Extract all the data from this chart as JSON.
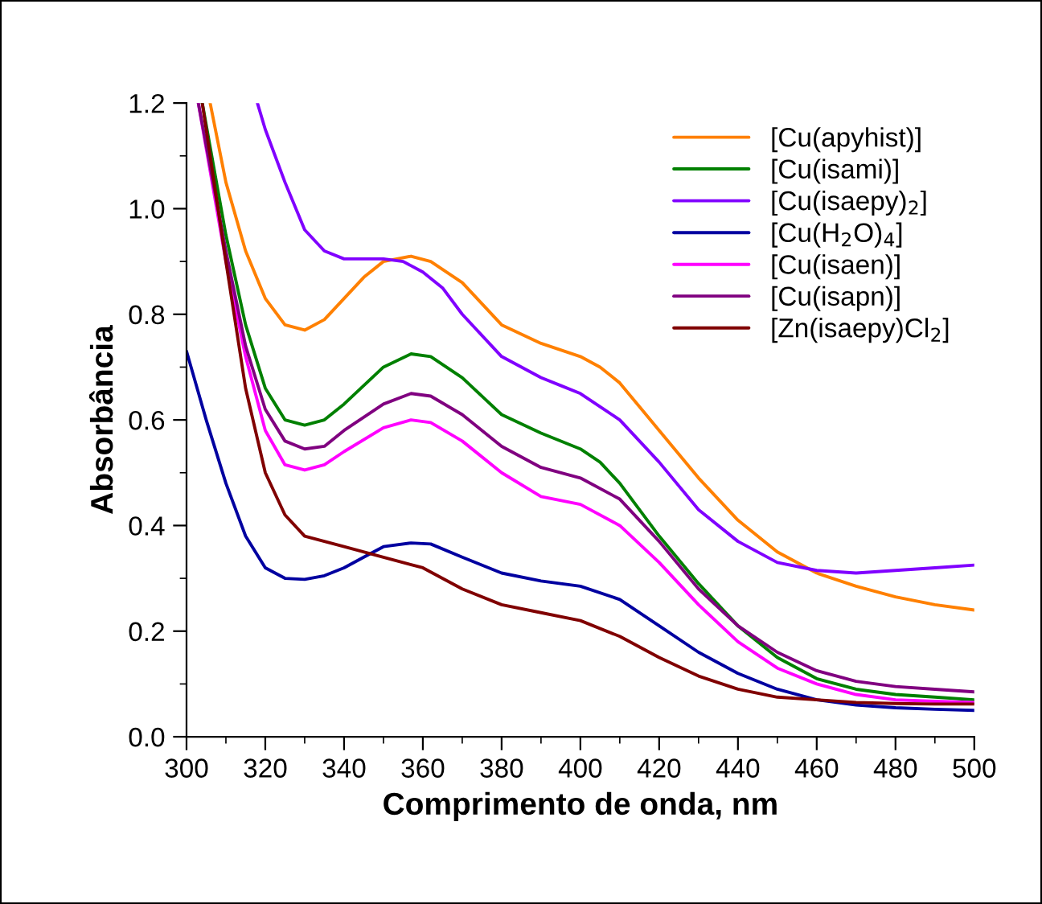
{
  "chart_data": {
    "type": "line",
    "xlabel": "Comprimento de onda, nm",
    "ylabel": "Absorbância",
    "xlim": [
      300,
      500
    ],
    "ylim": [
      0,
      1.2
    ],
    "xticks": [
      300,
      320,
      340,
      360,
      380,
      400,
      420,
      440,
      460,
      480,
      500
    ],
    "yticks": [
      {
        "value": 0,
        "label": "0.0"
      },
      {
        "value": 0.2,
        "label": "0.2"
      },
      {
        "value": 0.4,
        "label": "0.4"
      },
      {
        "value": 0.6,
        "label": "0.6"
      },
      {
        "value": 0.8,
        "label": "0.8"
      },
      {
        "value": 1,
        "label": "1.0"
      },
      {
        "value": 1.2,
        "label": "1.2"
      }
    ],
    "grid": false,
    "legend": "top right",
    "marker": "none",
    "line_style": "solid",
    "series": [
      {
        "name": "[Cu(apyhist)]",
        "color": "#ff8000",
        "x": [
          306,
          310,
          315,
          320,
          325,
          330,
          335,
          340,
          345,
          350,
          357,
          362,
          370,
          380,
          390,
          400,
          405,
          410,
          420,
          430,
          440,
          450,
          460,
          470,
          480,
          490,
          500
        ],
        "values": [
          1.2,
          1.05,
          0.92,
          0.83,
          0.78,
          0.77,
          0.79,
          0.83,
          0.87,
          0.9,
          0.91,
          0.9,
          0.86,
          0.78,
          0.745,
          0.72,
          0.7,
          0.67,
          0.58,
          0.49,
          0.41,
          0.35,
          0.31,
          0.285,
          0.265,
          0.25,
          0.24
        ]
      },
      {
        "name": "[Cu(isami)]",
        "color": "#008000",
        "x": [
          304,
          310,
          315,
          320,
          325,
          330,
          335,
          340,
          350,
          357,
          362,
          370,
          380,
          390,
          400,
          405,
          410,
          420,
          430,
          440,
          450,
          460,
          470,
          480,
          490,
          500
        ],
        "values": [
          1.2,
          0.95,
          0.78,
          0.66,
          0.6,
          0.59,
          0.6,
          0.63,
          0.7,
          0.725,
          0.72,
          0.68,
          0.61,
          0.575,
          0.545,
          0.52,
          0.48,
          0.38,
          0.29,
          0.21,
          0.15,
          0.11,
          0.09,
          0.08,
          0.075,
          0.07
        ]
      },
      {
        "name": "[Cu(isaepy)$_{2}$]",
        "color": "#8000ff",
        "x": [
          318,
          320,
          325,
          330,
          335,
          340,
          350,
          355,
          360,
          365,
          370,
          380,
          390,
          395,
          400,
          410,
          420,
          430,
          440,
          450,
          460,
          470,
          480,
          490,
          500
        ],
        "values": [
          1.2,
          1.15,
          1.05,
          0.96,
          0.92,
          0.905,
          0.905,
          0.9,
          0.88,
          0.85,
          0.8,
          0.72,
          0.68,
          0.665,
          0.65,
          0.6,
          0.52,
          0.43,
          0.37,
          0.33,
          0.315,
          0.31,
          0.315,
          0.32,
          0.325
        ]
      },
      {
        "name": "[Cu(H$_{2}$O)$_{4}$]",
        "color": "#0000a0",
        "x": [
          300,
          305,
          310,
          315,
          320,
          325,
          330,
          335,
          340,
          345,
          350,
          357,
          362,
          370,
          380,
          390,
          400,
          410,
          420,
          430,
          440,
          450,
          460,
          470,
          480,
          490,
          500
        ],
        "values": [
          0.73,
          0.6,
          0.48,
          0.38,
          0.32,
          0.3,
          0.298,
          0.305,
          0.32,
          0.34,
          0.36,
          0.367,
          0.365,
          0.34,
          0.31,
          0.295,
          0.285,
          0.26,
          0.21,
          0.16,
          0.12,
          0.09,
          0.07,
          0.06,
          0.055,
          0.052,
          0.05
        ]
      },
      {
        "name": "[Cu(isaen)]",
        "color": "#ff00ff",
        "x": [
          303,
          310,
          315,
          320,
          325,
          330,
          335,
          340,
          350,
          357,
          362,
          370,
          380,
          390,
          400,
          410,
          420,
          430,
          440,
          450,
          460,
          470,
          480,
          490,
          500
        ],
        "values": [
          1.2,
          0.9,
          0.72,
          0.58,
          0.515,
          0.505,
          0.515,
          0.54,
          0.585,
          0.6,
          0.595,
          0.56,
          0.5,
          0.455,
          0.44,
          0.4,
          0.33,
          0.25,
          0.18,
          0.13,
          0.1,
          0.08,
          0.07,
          0.067,
          0.065
        ]
      },
      {
        "name": "[Cu(isapn)]",
        "color": "#800080",
        "x": [
          303,
          310,
          315,
          320,
          325,
          330,
          335,
          340,
          350,
          357,
          362,
          370,
          380,
          390,
          400,
          410,
          420,
          430,
          440,
          450,
          460,
          470,
          480,
          490,
          500
        ],
        "values": [
          1.2,
          0.92,
          0.74,
          0.62,
          0.56,
          0.545,
          0.55,
          0.58,
          0.63,
          0.65,
          0.645,
          0.61,
          0.55,
          0.51,
          0.49,
          0.45,
          0.37,
          0.28,
          0.21,
          0.16,
          0.125,
          0.105,
          0.095,
          0.09,
          0.085
        ]
      },
      {
        "name": "[Zn(isaepy)Cl$_{2}$]",
        "color": "#800000",
        "x": [
          304,
          310,
          315,
          320,
          325,
          330,
          340,
          350,
          360,
          370,
          380,
          390,
          400,
          410,
          420,
          430,
          440,
          450,
          460,
          470,
          480,
          490,
          500
        ],
        "values": [
          1.2,
          0.9,
          0.66,
          0.5,
          0.42,
          0.38,
          0.36,
          0.34,
          0.32,
          0.28,
          0.25,
          0.235,
          0.22,
          0.19,
          0.15,
          0.115,
          0.09,
          0.075,
          0.07,
          0.065,
          0.063,
          0.062,
          0.062
        ]
      }
    ]
  }
}
